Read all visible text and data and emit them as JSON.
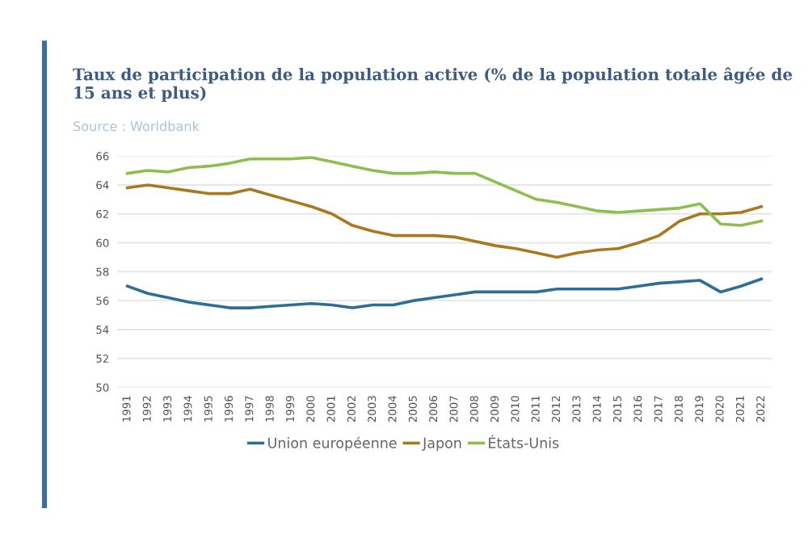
{
  "chart_data": {
    "type": "line",
    "title": "Taux de participation de la population active (% de la population totale âgée de 15 ans et plus)",
    "subtitle": "Source : Worldbank",
    "categories": [
      "1991",
      "1992",
      "1993",
      "1994",
      "1995",
      "1996",
      "1997",
      "1998",
      "1999",
      "2000",
      "2001",
      "2002",
      "2003",
      "2004",
      "2005",
      "2006",
      "2007",
      "2008",
      "2009",
      "2010",
      "2011",
      "2012",
      "2013",
      "2014",
      "2015",
      "2016",
      "2017",
      "2018",
      "2019",
      "2020",
      "2021",
      "2022"
    ],
    "series": [
      {
        "name": "Union européenne",
        "color": "#2e6e96",
        "values": [
          57.0,
          56.5,
          56.2,
          55.9,
          55.7,
          55.5,
          55.5,
          55.6,
          55.7,
          55.8,
          55.7,
          55.5,
          55.7,
          55.7,
          56.0,
          56.2,
          56.4,
          56.6,
          56.6,
          56.6,
          56.6,
          56.8,
          56.8,
          56.8,
          56.8,
          57.0,
          57.2,
          57.3,
          57.4,
          56.6,
          57.0,
          57.5
        ]
      },
      {
        "name": "Japon",
        "color": "#a8791e",
        "values": [
          63.8,
          64.0,
          63.8,
          63.6,
          63.4,
          63.4,
          63.7,
          63.3,
          62.9,
          62.5,
          62.0,
          61.2,
          60.8,
          60.5,
          60.5,
          60.5,
          60.4,
          60.1,
          59.8,
          59.6,
          59.3,
          59.0,
          59.3,
          59.5,
          59.6,
          60.0,
          60.5,
          61.5,
          62.0,
          62.0,
          62.1,
          62.5
        ]
      },
      {
        "name": "États-Unis",
        "color": "#8cbf4e",
        "values": [
          64.8,
          65.0,
          64.9,
          65.2,
          65.3,
          65.5,
          65.8,
          65.8,
          65.8,
          65.9,
          65.6,
          65.3,
          65.0,
          64.8,
          64.8,
          64.9,
          64.8,
          64.8,
          64.2,
          63.6,
          63.0,
          62.8,
          62.5,
          62.2,
          62.1,
          62.2,
          62.3,
          62.4,
          62.7,
          61.3,
          61.2,
          61.5
        ]
      }
    ],
    "ylim": [
      50,
      66
    ],
    "yticks": [
      50,
      52,
      54,
      56,
      58,
      60,
      62,
      64,
      66
    ],
    "grid": "y",
    "legend": "bottom",
    "marker": "none",
    "line_style": "solid"
  }
}
